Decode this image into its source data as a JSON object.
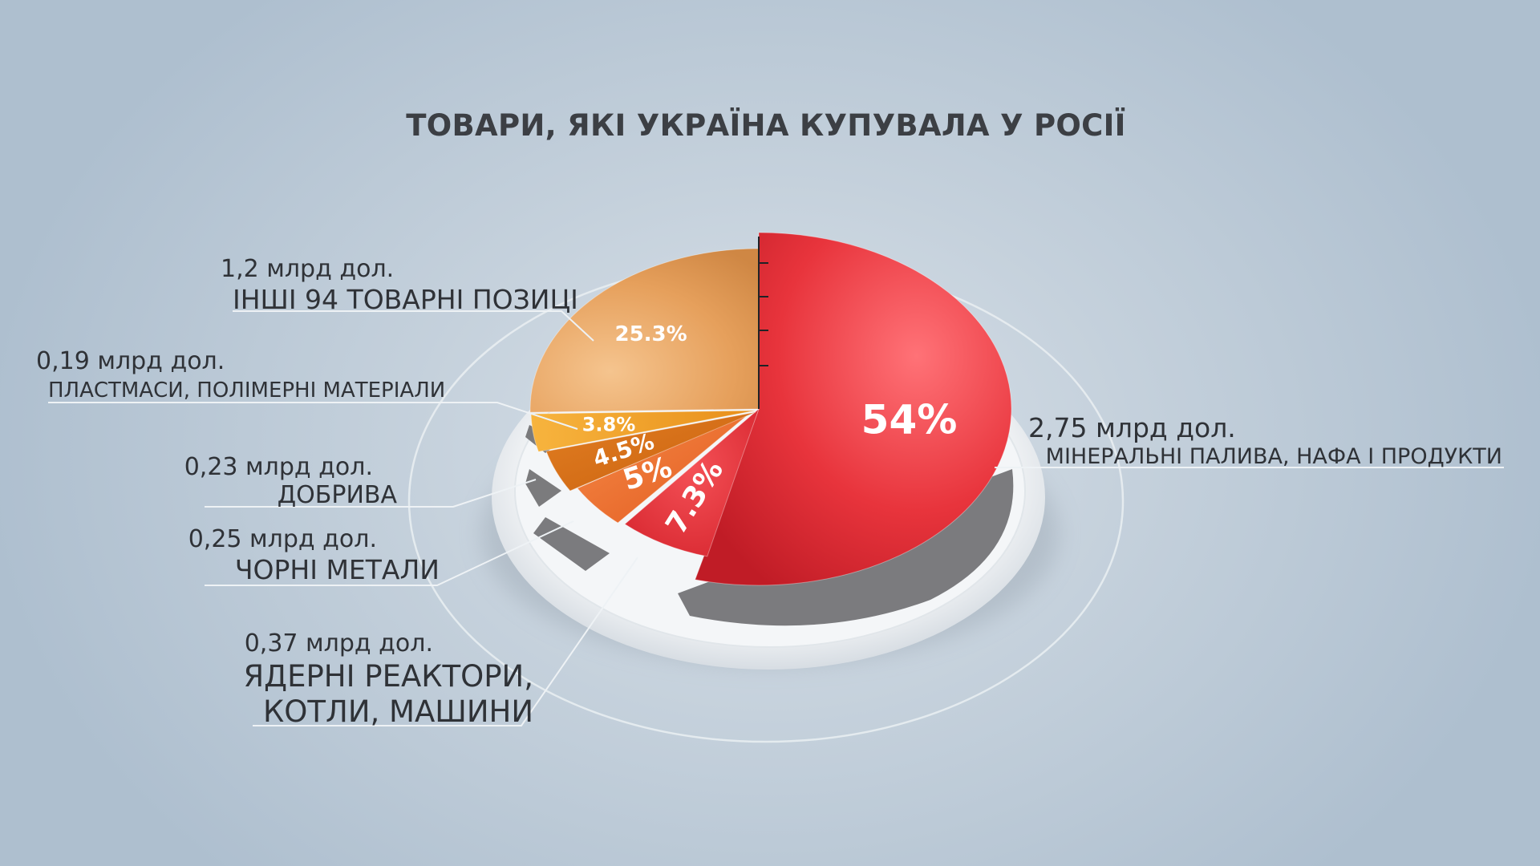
{
  "chart_data": {
    "type": "pie",
    "title": "ТОВАРИ, ЯКІ УКРАЇНА КУПУВАЛА У РОСІЇ",
    "slices": [
      {
        "name": "МІНЕРАЛЬНІ ПАЛИВА, НАФА І ПРОДУКТИ",
        "amount": "2,75 млрд дол.",
        "percent": 54,
        "percent_label": "54%",
        "color": "#e8343c"
      },
      {
        "name": "ЯДЕРНІ РЕАКТОРИ, КОТЛИ, МАШИНИ",
        "amount": "0,37 млрд дол.",
        "percent": 7.3,
        "percent_label": "7.3%",
        "color": "#e8323a"
      },
      {
        "name": "ЧОРНІ МЕТАЛИ",
        "amount": "0,25 млрд дол.",
        "percent": 5,
        "percent_label": "5%",
        "color": "#ee6a2c"
      },
      {
        "name": "ДОБРИВА",
        "amount": "0,23 млрд дол.",
        "percent": 4.5,
        "percent_label": "4.5%",
        "color": "#d96c14"
      },
      {
        "name": "ПЛАСТМАСИ, ПОЛІМЕРНІ МАТЕРІАЛИ",
        "amount": "0,19 млрд дол.",
        "percent": 3.8,
        "percent_label": "3.8%",
        "color": "#f2a028"
      },
      {
        "name": "ІНШІ 94 ТОВАРНІ ПОЗИЦІ",
        "amount": "1,2 млрд дол.",
        "percent": 25.3,
        "percent_label": "25.3%",
        "color": "#e7a05a"
      }
    ]
  }
}
